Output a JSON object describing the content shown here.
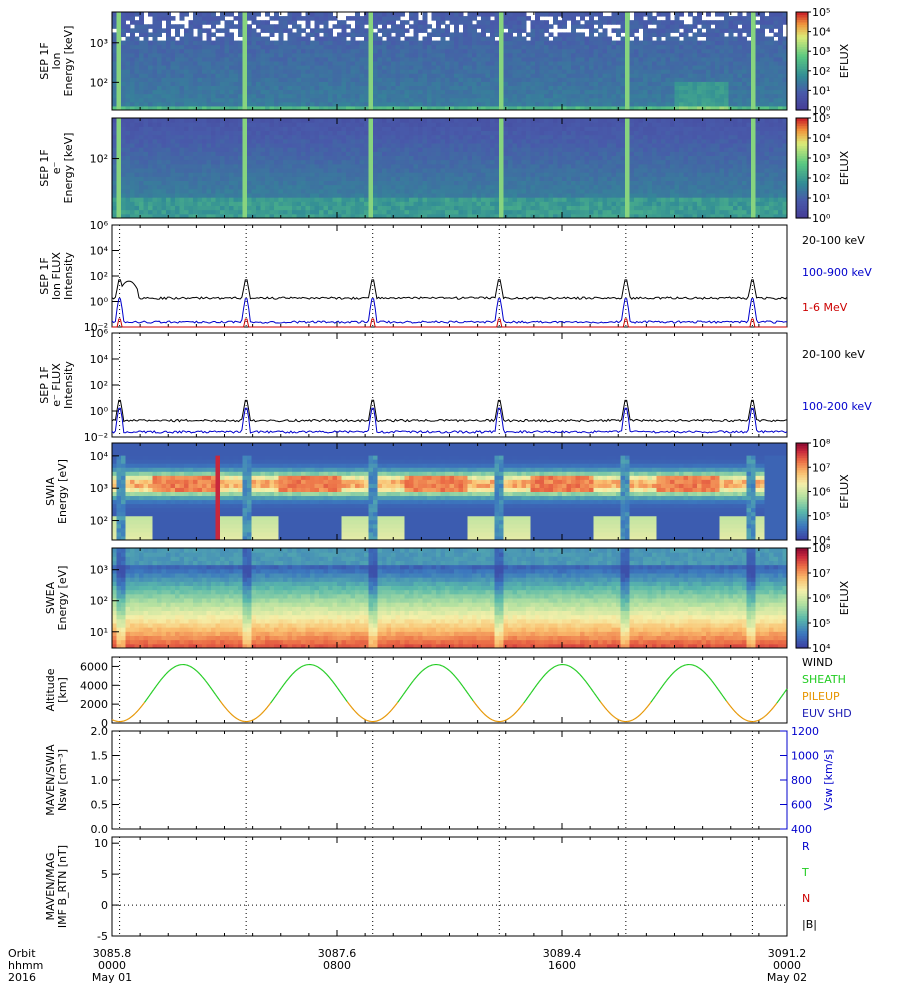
{
  "chart_data": [
    {
      "id": "sep1f_ion_spec",
      "type": "heatmap",
      "ylabel": [
        "SEP 1F",
        "Ion",
        "Energy [keV]"
      ],
      "yscale": "log",
      "ylim": [
        20,
        6000
      ],
      "yticks": [
        {
          "v": 100,
          "label": "10²"
        },
        {
          "v": 1000,
          "label": "10³"
        }
      ],
      "colorbar": {
        "label": "EFLUX",
        "scale": "log",
        "range": [
          1,
          100000
        ],
        "ticks": [
          "10⁰",
          "10¹",
          "10²",
          "10³",
          "10⁴",
          "10⁵"
        ]
      },
      "palette": "viridis-like"
    },
    {
      "id": "sep1f_elec_spec",
      "type": "heatmap",
      "ylabel": [
        "SEP 1F",
        "e⁻",
        "Energy [keV]"
      ],
      "yscale": "log",
      "ylim": [
        20,
        300
      ],
      "yticks": [
        {
          "v": 100,
          "label": "10²"
        }
      ],
      "colorbar": {
        "label": "EFLUX",
        "scale": "log",
        "range": [
          1,
          100000
        ],
        "ticks": [
          "10⁰",
          "10¹",
          "10²",
          "10³",
          "10⁴",
          "10⁵"
        ]
      },
      "palette": "viridis-like"
    },
    {
      "id": "sep1f_ion_flux",
      "type": "line",
      "ylabel": [
        "SEP 1F",
        "Ion FLUX",
        "Intensity"
      ],
      "yscale": "log",
      "ylim": [
        0.01,
        1000000
      ],
      "yticks": [
        "10⁻²",
        "10⁰",
        "10²",
        "10⁴",
        "10⁶"
      ],
      "series": [
        {
          "name": "20-100 keV",
          "color": "#000000",
          "base": 1.5,
          "peak": 60
        },
        {
          "name": "100-900 keV",
          "color": "#0000cc",
          "base": 0.02,
          "peak": 2
        },
        {
          "name": "1-6 MeV",
          "color": "#cc0000",
          "base": 0.0015,
          "peak": 0.05
        }
      ]
    },
    {
      "id": "sep1f_elec_flux",
      "type": "line",
      "ylabel": [
        "SEP 1F",
        "e⁻ FLUX",
        "Intensity"
      ],
      "yscale": "log",
      "ylim": [
        0.01,
        1000000
      ],
      "yticks": [
        "10⁻²",
        "10⁰",
        "10²",
        "10⁴",
        "10⁶"
      ],
      "series": [
        {
          "name": "20-100 keV",
          "color": "#000000",
          "base": 0.15,
          "peak": 8
        },
        {
          "name": "100-200 keV",
          "color": "#0000cc",
          "base": 0.02,
          "peak": 2
        }
      ]
    },
    {
      "id": "swia_spec",
      "type": "heatmap",
      "ylabel": [
        "SWIA",
        "Energy [eV]"
      ],
      "yscale": "log",
      "ylim": [
        25,
        25000
      ],
      "yticks": [
        {
          "v": 100,
          "label": "10²"
        },
        {
          "v": 1000,
          "label": "10³"
        },
        {
          "v": 10000,
          "label": "10⁴"
        }
      ],
      "colorbar": {
        "label": "EFLUX",
        "scale": "log",
        "range": [
          10000,
          100000000
        ],
        "ticks": [
          "10⁴",
          "10⁵",
          "10⁶",
          "10⁷",
          "10⁸"
        ]
      },
      "palette": "spectral"
    },
    {
      "id": "swea_spec",
      "type": "heatmap",
      "ylabel": [
        "SWEA",
        "Energy [eV]"
      ],
      "yscale": "log",
      "ylim": [
        3,
        5000
      ],
      "yticks": [
        {
          "v": 10,
          "label": "10¹"
        },
        {
          "v": 100,
          "label": "10²"
        },
        {
          "v": 1000,
          "label": "10³"
        }
      ],
      "colorbar": {
        "label": "EFLUX",
        "scale": "log",
        "range": [
          1000,
          100000000
        ],
        "ticks": [
          "10⁴",
          "10⁵",
          "10⁶",
          "10⁷",
          "10⁸"
        ]
      },
      "palette": "spectral"
    },
    {
      "id": "altitude",
      "type": "line",
      "ylabel": [
        "Altitude",
        "[km]"
      ],
      "ylim": [
        0,
        7000
      ],
      "yticks": [
        "0",
        "2000",
        "4000",
        "6000"
      ],
      "orbit_period_hours": 4.5,
      "periapsis_km": 150,
      "apoapsis_km": 6200,
      "legend": [
        {
          "name": "WIND",
          "color": "#000000"
        },
        {
          "name": "SHEATH",
          "color": "#22cc22"
        },
        {
          "name": "PILEUP",
          "color": "#e69500"
        },
        {
          "name": "EUV SHD",
          "color": "#1a1ab3"
        }
      ]
    },
    {
      "id": "swia_moments",
      "type": "line",
      "ylabel": [
        "MAVEN/SWIA",
        "Nsw [cm⁻³]"
      ],
      "ylim": [
        0,
        2.0
      ],
      "yticks": [
        "0.0",
        "0.5",
        "1.0",
        "1.5",
        "2.0"
      ],
      "y2label": "Vsw [km/s]",
      "y2lim": [
        400,
        1200
      ],
      "y2ticks": [
        "400",
        "600",
        "800",
        "1000",
        "1200"
      ],
      "y2color": "#0000cc",
      "series": []
    },
    {
      "id": "mag_imf",
      "type": "line",
      "ylabel": [
        "MAVEN/MAG",
        "IMF B_RTN [nT]"
      ],
      "ylim": [
        -5,
        11
      ],
      "yticks": [
        "-5",
        "0",
        "5",
        "10"
      ],
      "legend": [
        {
          "name": "R",
          "color": "#0000cc"
        },
        {
          "name": "T",
          "color": "#22cc22"
        },
        {
          "name": "N",
          "color": "#cc0000"
        },
        {
          "name": "|B|",
          "color": "#000000"
        }
      ],
      "series": []
    }
  ],
  "x_axis": {
    "row_labels": [
      "Orbit",
      "hhmm",
      "2016"
    ],
    "ticks": [
      {
        "hour": 0,
        "orbit": "3085.8",
        "hhmm": "0000",
        "date": "May 01"
      },
      {
        "hour": 8,
        "orbit": "3087.6",
        "hhmm": "0800",
        "date": ""
      },
      {
        "hour": 16,
        "orbit": "3089.4",
        "hhmm": "1600",
        "date": ""
      },
      {
        "hour": 24,
        "orbit": "3091.2",
        "hhmm": "0000",
        "date": "May 02"
      }
    ],
    "range_hours": [
      0,
      24
    ],
    "periapsis_hours": [
      0.27,
      4.77,
      9.27,
      13.77,
      18.27,
      22.77
    ]
  }
}
